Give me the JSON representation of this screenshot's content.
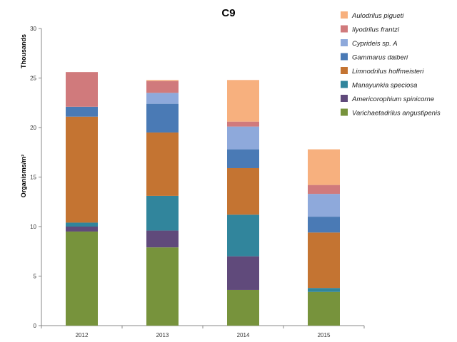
{
  "chart_data": {
    "type": "bar",
    "stacked": true,
    "title": "C9",
    "ylabel": "Organisms/m²",
    "yunit_label": "Thousands",
    "ylim": [
      0,
      30
    ],
    "yticks": [
      "0",
      "5",
      "10",
      "15",
      "20",
      "25",
      "30"
    ],
    "grid": false,
    "legend_position": "right",
    "categories": [
      "2012",
      "2013",
      "2014",
      "2015"
    ],
    "series": [
      {
        "name": "Varichaetadrilus angustipenis",
        "color": "#77933C",
        "values": [
          9.5,
          7.9,
          3.6,
          3.4
        ]
      },
      {
        "name": "Americorophium spinicorne",
        "color": "#604A7B",
        "values": [
          0.5,
          1.7,
          3.4,
          0.0
        ]
      },
      {
        "name": "Manayunkia speciosa",
        "color": "#31859C",
        "values": [
          0.4,
          3.5,
          4.2,
          0.4
        ]
      },
      {
        "name": "Limnodrilus hoffmeisteri",
        "color": "#C47432",
        "values": [
          10.7,
          6.4,
          4.7,
          5.6
        ]
      },
      {
        "name": "Gammarus daiberi",
        "color": "#4A7AB5",
        "values": [
          1.0,
          2.9,
          1.9,
          1.6
        ]
      },
      {
        "name": "Cyprideis sp. A",
        "color": "#8EA9DB",
        "values": [
          0.0,
          1.1,
          2.3,
          2.3
        ]
      },
      {
        "name": "Ilyodrilus frantzi",
        "color": "#D07A7C",
        "values": [
          3.5,
          1.2,
          0.5,
          0.9
        ]
      },
      {
        "name": "Aulodrilus pigueti",
        "color": "#F7B07E",
        "values": [
          0.0,
          0.1,
          4.2,
          3.6
        ]
      }
    ]
  }
}
